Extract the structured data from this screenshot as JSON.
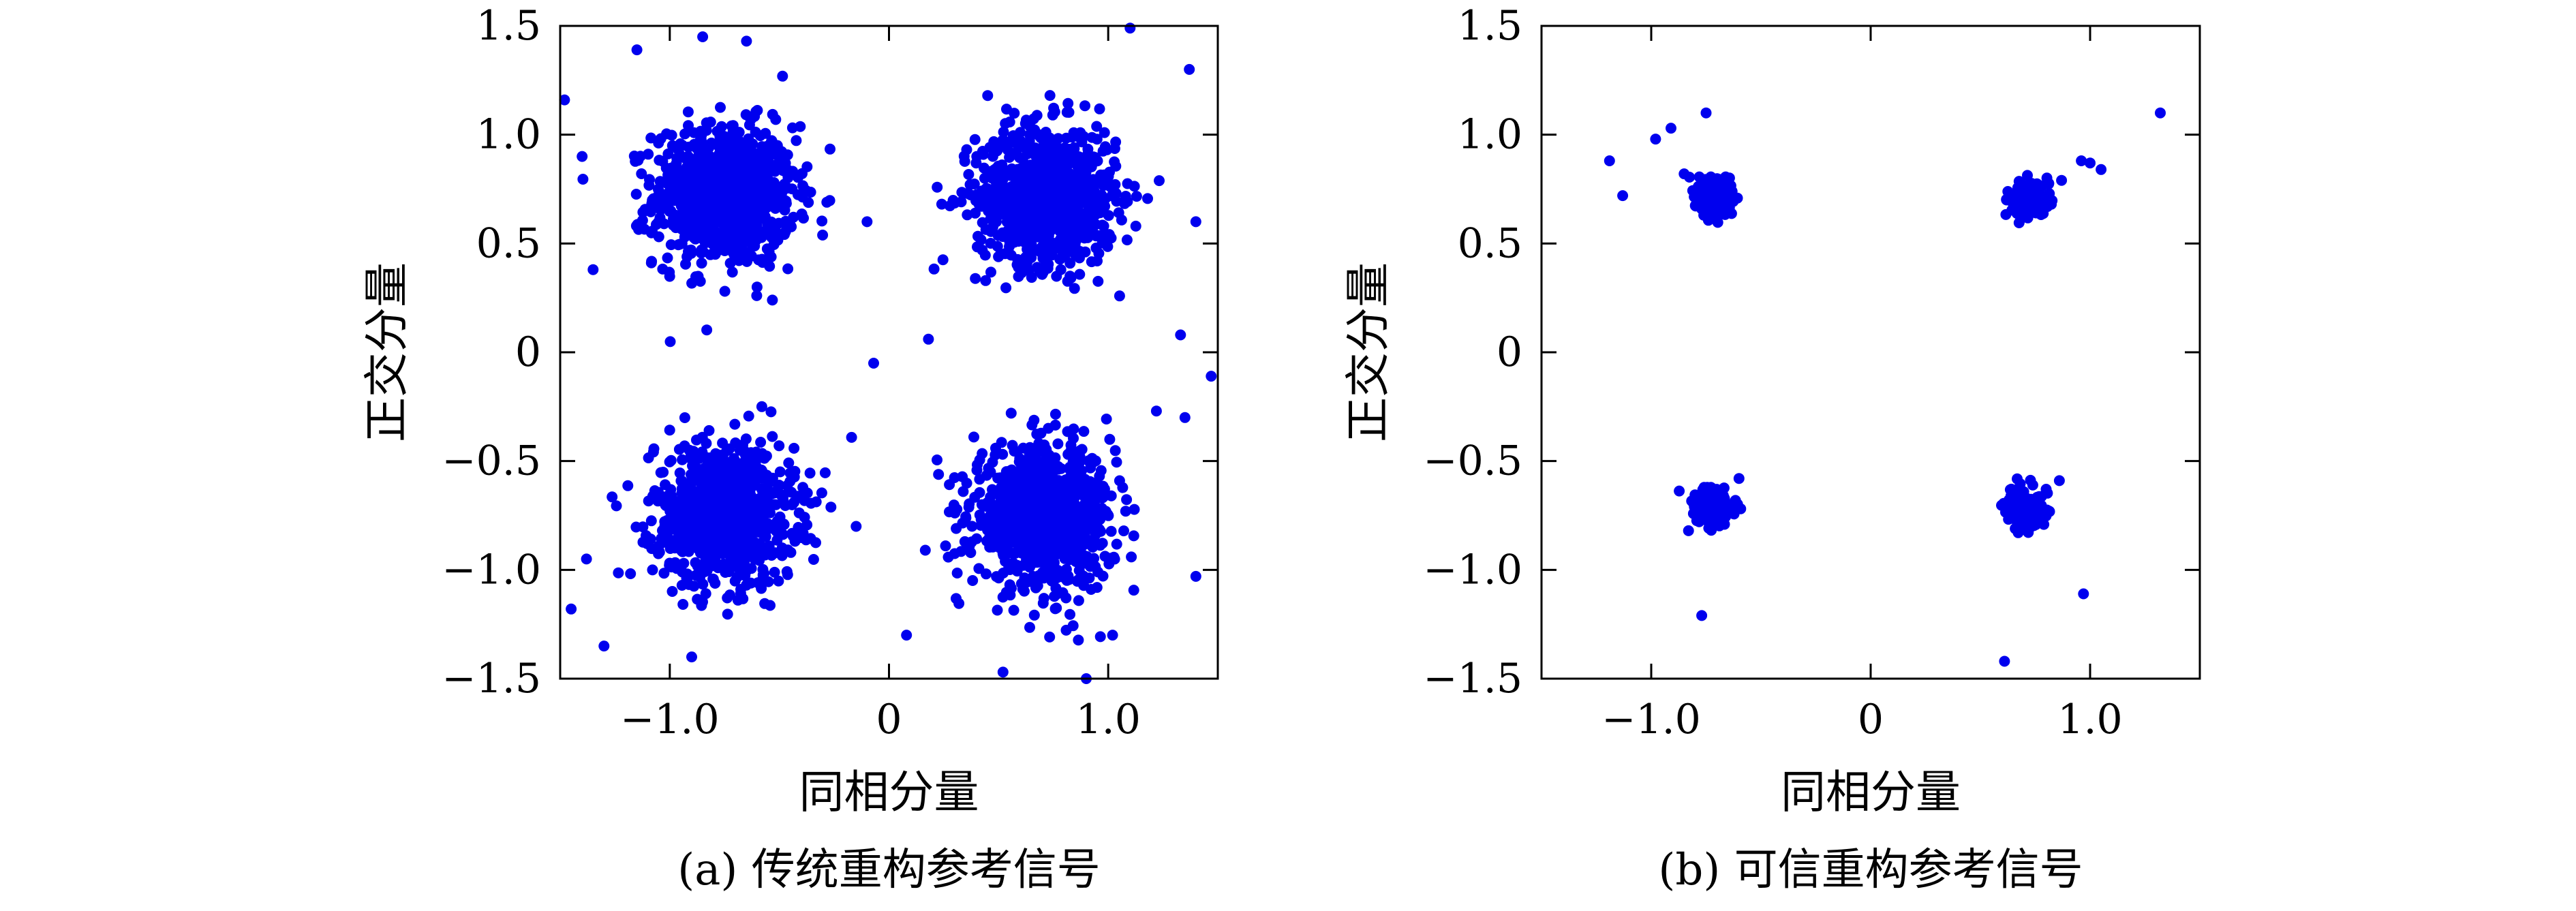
{
  "chart_data": [
    {
      "type": "scatter",
      "caption": "(a) 传统重构参考信号",
      "xlabel": "同相分量",
      "ylabel": "正交分量",
      "xlim": [
        -1.5,
        1.5
      ],
      "ylim": [
        -1.5,
        1.5
      ],
      "xticks": [
        -1.0,
        0,
        1.0
      ],
      "xtick_labels": [
        "−1.0",
        "0",
        "1.0"
      ],
      "yticks": [
        1.5,
        1.0,
        0.5,
        0,
        -0.5,
        -1.0,
        -1.5
      ],
      "ytick_labels": [
        "1.5",
        "1.0",
        "0.5",
        "0",
        "−0.5",
        "−1.0",
        "−1.5"
      ],
      "grid": false,
      "marker_color": "#0000ee",
      "clusters": [
        {
          "center": [
            -0.75,
            0.72
          ],
          "spread": 0.16,
          "count": 900
        },
        {
          "center": [
            0.72,
            0.72
          ],
          "spread": 0.16,
          "count": 900
        },
        {
          "center": [
            -0.75,
            -0.74
          ],
          "spread": 0.16,
          "count": 900
        },
        {
          "center": [
            0.7,
            -0.76
          ],
          "spread": 0.16,
          "count": 900
        }
      ],
      "outliers": [
        [
          -1.48,
          1.16
        ],
        [
          -1.4,
          0.9
        ],
        [
          -1.35,
          0.38
        ],
        [
          -1.15,
          1.39
        ],
        [
          -0.85,
          1.45
        ],
        [
          -0.65,
          1.43
        ],
        [
          -0.1,
          0.6
        ],
        [
          -0.07,
          -0.05
        ],
        [
          0.18,
          0.06
        ],
        [
          0.45,
          1.18
        ],
        [
          1.1,
          1.49
        ],
        [
          1.37,
          1.3
        ],
        [
          1.4,
          0.6
        ],
        [
          1.33,
          0.08
        ],
        [
          1.47,
          -0.11
        ],
        [
          1.35,
          -0.3
        ],
        [
          1.22,
          -0.27
        ],
        [
          1.4,
          -1.03
        ],
        [
          -1.45,
          -1.18
        ],
        [
          -1.3,
          -1.35
        ],
        [
          -0.58,
          -0.25
        ],
        [
          -0.15,
          -0.8
        ],
        [
          0.08,
          -1.3
        ],
        [
          0.52,
          -1.47
        ],
        [
          0.9,
          -1.5
        ],
        [
          1.02,
          -1.3
        ],
        [
          -0.9,
          -1.4
        ],
        [
          -1.38,
          -0.95
        ]
      ]
    },
    {
      "type": "scatter",
      "caption": "(b) 可信重构参考信号",
      "xlabel": "同相分量",
      "ylabel": "正交分量",
      "xlim": [
        -1.5,
        1.5
      ],
      "ylim": [
        -1.5,
        1.5
      ],
      "xticks": [
        -1.0,
        0,
        1.0
      ],
      "xtick_labels": [
        "−1.0",
        "0",
        "1.0"
      ],
      "yticks": [
        1.5,
        1.0,
        0.5,
        0,
        -0.5,
        -1.0,
        -1.5
      ],
      "ytick_labels": [
        "1.5",
        "1.0",
        "0.5",
        "0",
        "−0.5",
        "−1.0",
        "−1.5"
      ],
      "grid": false,
      "marker_color": "#0000ee",
      "clusters": [
        {
          "center": [
            -0.72,
            0.71
          ],
          "spread": 0.04,
          "count": 220
        },
        {
          "center": [
            0.72,
            0.7
          ],
          "spread": 0.04,
          "count": 220
        },
        {
          "center": [
            -0.72,
            -0.71
          ],
          "spread": 0.04,
          "count": 220
        },
        {
          "center": [
            0.71,
            -0.72
          ],
          "spread": 0.04,
          "count": 220
        }
      ],
      "outliers": [
        [
          -1.19,
          0.88
        ],
        [
          -1.13,
          0.72
        ],
        [
          -0.98,
          0.98
        ],
        [
          -0.91,
          1.03
        ],
        [
          -0.75,
          1.1
        ],
        [
          -0.85,
          0.82
        ],
        [
          1.32,
          1.1
        ],
        [
          0.96,
          0.88
        ],
        [
          1.0,
          0.87
        ],
        [
          1.05,
          0.84
        ],
        [
          0.87,
          0.79
        ],
        [
          -0.77,
          -1.21
        ],
        [
          -0.83,
          -0.82
        ],
        [
          -0.6,
          -0.58
        ],
        [
          0.61,
          -1.42
        ],
        [
          0.97,
          -1.11
        ],
        [
          0.86,
          -0.59
        ]
      ]
    }
  ]
}
